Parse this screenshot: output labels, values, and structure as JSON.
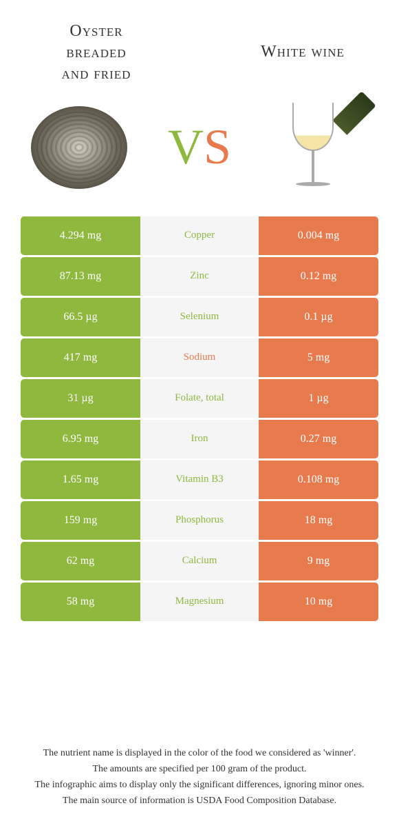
{
  "header": {
    "left_title": "Oyster\nbreaded\nand fried",
    "right_title": "White wine",
    "vs_v": "V",
    "vs_s": "S"
  },
  "colors": {
    "green": "#8fb83e",
    "orange": "#e87b4e",
    "mid_bg": "#f5f5f5",
    "nutrient_green": "#8fb83e",
    "nutrient_orange": "#e87b4e"
  },
  "rows": [
    {
      "left": "4.294 mg",
      "mid": "Copper",
      "mid_color": "#8fb83e",
      "right": "0.004 mg"
    },
    {
      "left": "87.13 mg",
      "mid": "Zinc",
      "mid_color": "#8fb83e",
      "right": "0.12 mg"
    },
    {
      "left": "66.5 µg",
      "mid": "Selenium",
      "mid_color": "#8fb83e",
      "right": "0.1 µg"
    },
    {
      "left": "417 mg",
      "mid": "Sodium",
      "mid_color": "#e87b4e",
      "right": "5 mg"
    },
    {
      "left": "31 µg",
      "mid": "Folate, total",
      "mid_color": "#8fb83e",
      "right": "1 µg"
    },
    {
      "left": "6.95 mg",
      "mid": "Iron",
      "mid_color": "#8fb83e",
      "right": "0.27 mg"
    },
    {
      "left": "1.65 mg",
      "mid": "Vitamin B3",
      "mid_color": "#8fb83e",
      "right": "0.108 mg"
    },
    {
      "left": "159 mg",
      "mid": "Phosphorus",
      "mid_color": "#8fb83e",
      "right": "18 mg"
    },
    {
      "left": "62 mg",
      "mid": "Calcium",
      "mid_color": "#8fb83e",
      "right": "9 mg"
    },
    {
      "left": "58 mg",
      "mid": "Magnesium",
      "mid_color": "#8fb83e",
      "right": "10 mg"
    }
  ],
  "footer": {
    "line1": "The nutrient name is displayed in the color of the food we considered as 'winner'.",
    "line2": "The amounts are specified per 100 gram of the product.",
    "line3": "The infographic aims to display only the significant differences, ignoring minor ones.",
    "line4": "The main source of information is USDA Food Composition Database."
  }
}
